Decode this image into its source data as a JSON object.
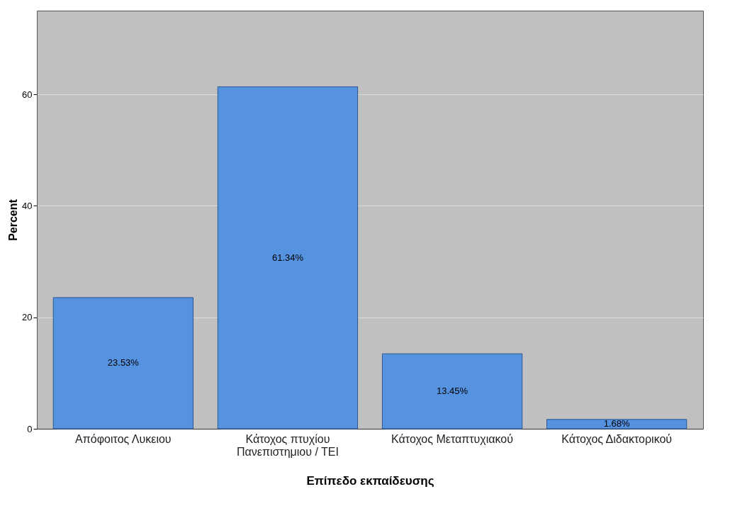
{
  "chart_data": {
    "type": "bar",
    "xlabel": "Επίπεδο εκπαίδευσης",
    "ylabel": "Percent",
    "categories": [
      "Απόφοιτος Λυκειου",
      "Κάτοχος πτυχίου Πανεπιστημιου / ΤΕΙ",
      "Κάτοχος Μεταπτυχιακού",
      "Κάτοχος Διδακτορικού"
    ],
    "values": [
      23.53,
      61.34,
      13.45,
      1.68
    ],
    "value_labels": [
      "23.53%",
      "61.34%",
      "13.45%",
      "1.68%"
    ],
    "color": "#5592e0",
    "ylim": [
      0,
      75
    ],
    "yticks": [
      0,
      20,
      40,
      60
    ],
    "grid": "y"
  }
}
